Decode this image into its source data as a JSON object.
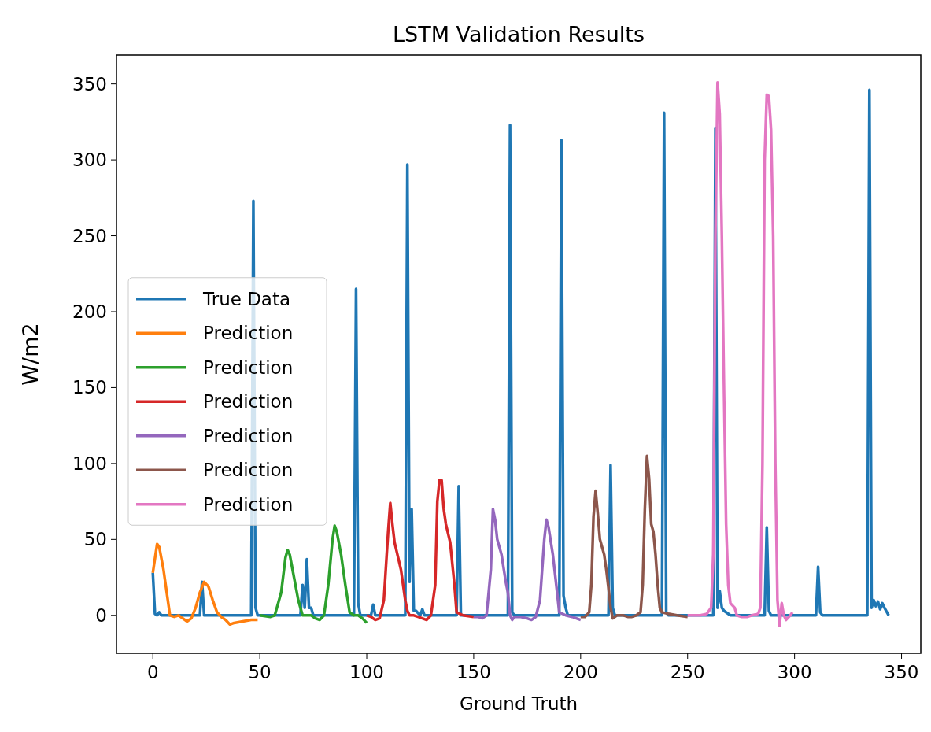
{
  "chart_data": {
    "type": "line",
    "title": "LSTM Validation Results",
    "xlabel": "Ground Truth",
    "ylabel": "W/m2",
    "xlim": [
      -17,
      359
    ],
    "ylim": [
      -25,
      369
    ],
    "xticks": [
      0,
      50,
      100,
      150,
      200,
      250,
      300,
      350
    ],
    "yticks": [
      0,
      50,
      100,
      150,
      200,
      250,
      300,
      350
    ],
    "grid": false,
    "legend": "left",
    "line_style": "solid",
    "marker": "none",
    "series": [
      {
        "name": "True Data",
        "color": "#1f77b4",
        "x": [
          0,
          1,
          2,
          3,
          4,
          22,
          23,
          24,
          46,
          47,
          48,
          49,
          69,
          70,
          71,
          72,
          73,
          74,
          75,
          94,
          95,
          96,
          97,
          102,
          103,
          104,
          118,
          119,
          120,
          121,
          122,
          123,
          125,
          126,
          127,
          142,
          143,
          144,
          166,
          167,
          168,
          169,
          190,
          191,
          192,
          193,
          194,
          213,
          214,
          215,
          216,
          238,
          239,
          240,
          241,
          262,
          263,
          264,
          265,
          266,
          267,
          270,
          286,
          287,
          288,
          289,
          310,
          311,
          312,
          313,
          334,
          335,
          336,
          337,
          338,
          339,
          340,
          341,
          342,
          344
        ],
        "values": [
          28,
          1,
          0,
          2,
          0,
          0,
          22,
          0,
          0,
          273,
          5,
          0,
          0,
          20,
          5,
          37,
          5,
          5,
          0,
          0,
          215,
          8,
          0,
          0,
          7,
          0,
          0,
          297,
          22,
          70,
          3,
          3,
          0,
          4,
          0,
          0,
          85,
          0,
          0,
          323,
          2,
          0,
          0,
          313,
          13,
          5,
          0,
          0,
          99,
          5,
          0,
          0,
          331,
          2,
          0,
          0,
          321,
          5,
          16,
          5,
          3,
          0,
          0,
          58,
          3,
          0,
          0,
          32,
          2,
          0,
          0,
          346,
          5,
          10,
          6,
          9,
          4,
          8,
          5,
          0
        ]
      },
      {
        "name": "Prediction",
        "color": "#ff7f0e",
        "x": [
          0,
          2,
          3,
          5,
          7,
          8,
          10,
          12,
          14,
          16,
          18,
          20,
          22,
          24,
          26,
          28,
          30,
          32,
          34,
          36,
          38,
          42,
          46,
          49
        ],
        "values": [
          28,
          47,
          45,
          30,
          10,
          0,
          -1,
          0,
          -2,
          -4,
          -2,
          5,
          15,
          22,
          19,
          10,
          2,
          -1,
          -3,
          -6,
          -5,
          -4,
          -3,
          -3
        ]
      },
      {
        "name": "Prediction",
        "color": "#2ca02c",
        "x": [
          50,
          55,
          57,
          60,
          62,
          63,
          64,
          66,
          68,
          70,
          72,
          74,
          76,
          78,
          80,
          82,
          84,
          85,
          86,
          88,
          90,
          92,
          94,
          96,
          98,
          100
        ],
        "values": [
          0,
          -1,
          0,
          15,
          38,
          43,
          40,
          25,
          10,
          0,
          0,
          0,
          -2,
          -3,
          0,
          20,
          50,
          59,
          55,
          40,
          20,
          2,
          0,
          0,
          -2,
          -5
        ]
      },
      {
        "name": "Prediction",
        "color": "#d62728",
        "x": [
          100,
          102,
          104,
          106,
          108,
          110,
          111,
          112,
          113,
          116,
          118,
          119,
          120,
          122,
          124,
          126,
          128,
          130,
          132,
          133,
          134,
          135,
          136,
          137,
          139,
          141,
          142,
          145,
          150
        ],
        "values": [
          0,
          -1,
          -3,
          -2,
          10,
          55,
          74,
          60,
          48,
          30,
          10,
          3,
          0,
          0,
          -1,
          -2,
          -3,
          0,
          20,
          75,
          89,
          89,
          70,
          60,
          48,
          20,
          2,
          0,
          -1
        ]
      },
      {
        "name": "Prediction",
        "color": "#9467bd",
        "x": [
          150,
          152,
          154,
          156,
          158,
          159,
          160,
          161,
          163,
          165,
          166,
          167,
          168,
          169,
          172,
          175,
          177,
          179,
          181,
          183,
          184,
          185,
          187,
          189,
          190,
          193,
          196,
          200
        ],
        "values": [
          -1,
          -1,
          -2,
          0,
          30,
          70,
          63,
          50,
          40,
          22,
          15,
          0,
          -3,
          -1,
          -1,
          -2,
          -3,
          -1,
          10,
          50,
          63,
          58,
          40,
          15,
          2,
          0,
          -1,
          -3
        ]
      },
      {
        "name": "Prediction",
        "color": "#8c564b",
        "x": [
          200,
          202,
          204,
          205,
          206,
          207,
          208,
          209,
          211,
          212,
          213,
          214,
          215,
          217,
          220,
          222,
          224,
          226,
          228,
          229,
          230,
          231,
          232,
          233,
          234,
          235,
          236,
          237,
          238,
          241,
          245,
          250
        ],
        "values": [
          -1,
          -1,
          2,
          20,
          65,
          82,
          67,
          50,
          40,
          30,
          18,
          5,
          -2,
          0,
          0,
          -1,
          -1,
          0,
          2,
          20,
          70,
          105,
          90,
          60,
          55,
          40,
          20,
          5,
          2,
          1,
          0,
          -1
        ]
      },
      {
        "name": "Prediction",
        "color": "#e377c2",
        "x": [
          250,
          256,
          259,
          261,
          262,
          263,
          264,
          265,
          266,
          267,
          268,
          269,
          270,
          272,
          273,
          275,
          278,
          280,
          283,
          284,
          285,
          286,
          287,
          288,
          289,
          290,
          291,
          292,
          293,
          294,
          295,
          296,
          298,
          299
        ],
        "values": [
          0,
          0,
          1,
          5,
          40,
          250,
          351,
          330,
          250,
          150,
          60,
          20,
          8,
          5,
          0,
          -1,
          -1,
          0,
          1,
          5,
          100,
          300,
          343,
          342,
          320,
          250,
          100,
          10,
          -7,
          8,
          0,
          -3,
          0,
          2
        ]
      }
    ]
  }
}
